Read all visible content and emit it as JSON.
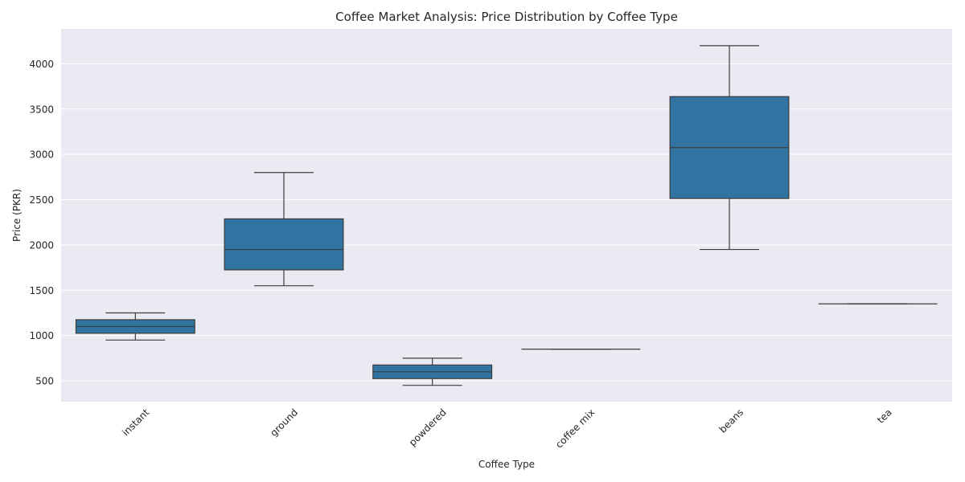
{
  "chart_data": {
    "type": "box",
    "title": "Coffee Market Analysis: Price Distribution by Coffee Type",
    "xlabel": "Coffee Type",
    "ylabel": "Price (PKR)",
    "categories": [
      "instant",
      "ground",
      "powdered",
      "coffee mix",
      "beans",
      "tea"
    ],
    "boxes": [
      {
        "category": "instant",
        "min": 950,
        "q1": 1025,
        "median": 1100,
        "q3": 1175,
        "max": 1250
      },
      {
        "category": "ground",
        "min": 1550,
        "q1": 1725,
        "median": 1950,
        "q3": 2288,
        "max": 2800
      },
      {
        "category": "powdered",
        "min": 450,
        "q1": 525,
        "median": 600,
        "q3": 675,
        "max": 750
      },
      {
        "category": "coffee mix",
        "min": 850,
        "q1": 850,
        "median": 850,
        "q3": 850,
        "max": 850
      },
      {
        "category": "beans",
        "min": 1950,
        "q1": 2513,
        "median": 3075,
        "q3": 3638,
        "max": 4200
      },
      {
        "category": "tea",
        "min": 1350,
        "q1": 1350,
        "median": 1350,
        "q3": 1350,
        "max": 1350
      }
    ],
    "yticks": [
      500,
      1000,
      1500,
      2000,
      2500,
      3000,
      3500,
      4000
    ],
    "ylim": [
      270,
      4385
    ],
    "grid": true,
    "colors": {
      "box_fill": "#3274a1",
      "line": "#3d3d3d",
      "axes_background": "#eaeaf2",
      "grid": "#ffffff"
    }
  }
}
